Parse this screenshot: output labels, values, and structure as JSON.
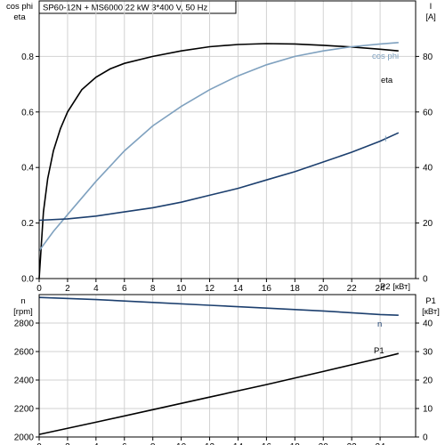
{
  "header": {
    "title": "SP60-12N + MS6000   22 kW   3*400 V, 50 Hz"
  },
  "colors": {
    "eta": "#000000",
    "cos_phi": "#7fa1bf",
    "current": "#1c3f6e",
    "speed": "#1c3f6e",
    "p1": "#000000"
  },
  "chart_data": [
    {
      "type": "line",
      "panel": "top",
      "xlabel": "P2 [кВт]",
      "x_ticks": [
        "0",
        "2",
        "4",
        "6",
        "8",
        "10",
        "12",
        "14",
        "16",
        "18",
        "20",
        "22",
        "24"
      ],
      "xlim": [
        0,
        26.5
      ],
      "grid": true,
      "y_left": {
        "label_lines": [
          "cos phi",
          "eta"
        ],
        "ticks": [
          "0.0",
          "0.2",
          "0.4",
          "0.6",
          "0.8"
        ],
        "lim": [
          0,
          1.0
        ]
      },
      "y_right": {
        "label_lines": [
          "I",
          "[A]"
        ],
        "ticks": [
          "0",
          "20",
          "40",
          "60",
          "80"
        ],
        "lim": [
          0,
          100
        ]
      },
      "series": [
        {
          "name": "eta",
          "axis": "left",
          "x": [
            0,
            0.3,
            0.6,
            1,
            1.5,
            2,
            3,
            4,
            5,
            6,
            8,
            10,
            12,
            14,
            16,
            18,
            20,
            22,
            24,
            25.3
          ],
          "y": [
            0,
            0.24,
            0.36,
            0.46,
            0.54,
            0.6,
            0.68,
            0.725,
            0.755,
            0.775,
            0.8,
            0.82,
            0.835,
            0.843,
            0.846,
            0.845,
            0.84,
            0.834,
            0.826,
            0.82
          ]
        },
        {
          "name": "cos phi",
          "axis": "left",
          "x": [
            0,
            1,
            2,
            4,
            6,
            8,
            10,
            12,
            14,
            16,
            18,
            20,
            22,
            24,
            25.3
          ],
          "y": [
            0.1,
            0.17,
            0.23,
            0.35,
            0.46,
            0.55,
            0.62,
            0.68,
            0.73,
            0.77,
            0.8,
            0.82,
            0.835,
            0.845,
            0.85
          ]
        },
        {
          "name": "I",
          "axis": "right",
          "x": [
            0,
            2,
            4,
            6,
            8,
            10,
            12,
            14,
            16,
            18,
            20,
            22,
            24,
            25.3
          ],
          "y": [
            21,
            21.5,
            22.5,
            24,
            25.5,
            27.5,
            30,
            32.5,
            35.5,
            38.5,
            42,
            45.5,
            49.5,
            52.5
          ]
        }
      ]
    },
    {
      "type": "line",
      "panel": "bottom",
      "x_ticks": [
        "0",
        "2",
        "4",
        "6",
        "8",
        "10",
        "12",
        "14",
        "16",
        "18",
        "20",
        "22",
        "24"
      ],
      "xlim": [
        0,
        26.5
      ],
      "grid": true,
      "y_left": {
        "label_lines": [
          "n",
          "[rpm]"
        ],
        "ticks": [
          "2000",
          "2200",
          "2400",
          "2600",
          "2800"
        ],
        "lim": [
          2000,
          3000
        ]
      },
      "y_right": {
        "label_lines": [
          "P1",
          "[кВт]"
        ],
        "ticks": [
          "0",
          "10",
          "20",
          "30",
          "40"
        ],
        "lim": [
          0,
          50
        ]
      },
      "series": [
        {
          "name": "n",
          "axis": "left",
          "x": [
            0,
            4,
            8,
            12,
            16,
            20,
            24,
            25.3
          ],
          "y": [
            2980,
            2965,
            2945,
            2925,
            2905,
            2885,
            2860,
            2855
          ]
        },
        {
          "name": "P1",
          "axis": "right",
          "x": [
            0,
            4,
            8,
            12,
            16,
            20,
            24,
            25.3
          ],
          "y": [
            0.9,
            5.2,
            9.6,
            14.0,
            18.4,
            23.0,
            27.7,
            29.3
          ]
        }
      ]
    }
  ]
}
